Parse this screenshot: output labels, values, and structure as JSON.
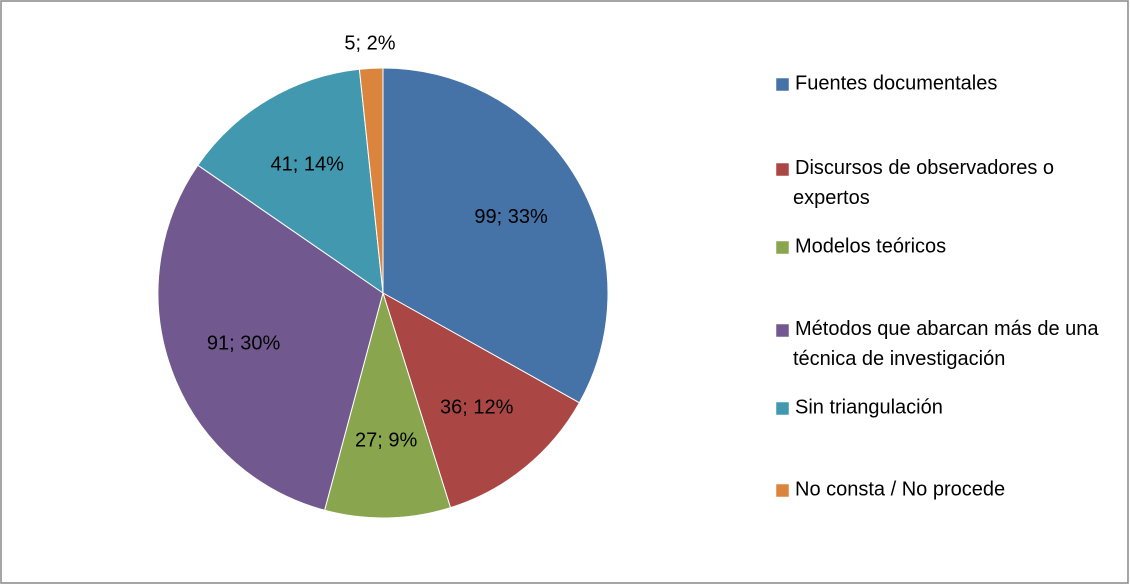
{
  "chart_data": {
    "type": "pie",
    "categories": [
      "Fuentes documentales",
      "Discursos de observadores o expertos",
      "Modelos teóricos",
      "Métodos que abarcan más de una técnica de investigación",
      "Sin triangulación",
      "No consta / No procede"
    ],
    "values": [
      99,
      36,
      27,
      91,
      41,
      5
    ],
    "value_labels": [
      "99; 33%",
      "36; 12%",
      "27; 9%",
      "91; 30%",
      "41; 14%",
      "5; 2%"
    ],
    "colors": [
      "#4572a7",
      "#aa4643",
      "#89a54e",
      "#71588f",
      "#4198af",
      "#db843d"
    ],
    "legend": "right"
  }
}
